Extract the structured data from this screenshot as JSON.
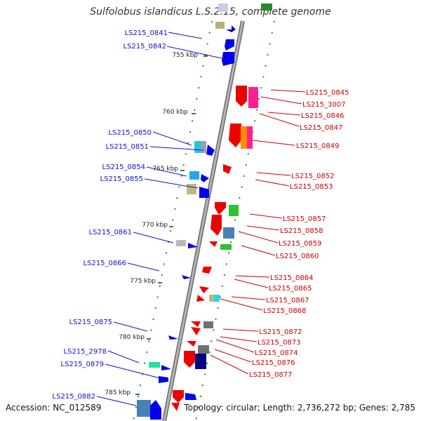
{
  "title": "Sulfolobus islandicus L.S.2.15, complete genome",
  "footer": {
    "accession": "Accession: NC_012589",
    "summary": "Topology: circular; Length: 2,736,272 bp; Genes: 2,785"
  },
  "ticks": [
    "755 kbp",
    "760 kbp",
    "765 kbp",
    "770 kbp",
    "775 kbp",
    "780 kbp",
    "785 kbp"
  ],
  "left_labels": [
    "LS215_0841",
    "LS215_0842",
    "LS215_0850",
    "LS215_0851",
    "LS215_0854",
    "LS215_0855",
    "LS215_0861",
    "LS215_0866",
    "LS215_0875",
    "LS215_2978",
    "LS215_0879",
    "LS215_0882"
  ],
  "right_labels": [
    "LS215_0845",
    "LS215_3007",
    "LS215_0846",
    "LS215_0847",
    "LS215_0849",
    "LS215_0852",
    "LS215_0853",
    "LS215_0857",
    "LS215_0858",
    "LS215_0859",
    "LS215_0860",
    "LS215_0864",
    "LS215_0865",
    "LS215_0867",
    "LS215_0868",
    "LS215_0872",
    "LS215_0873",
    "LS215_0874",
    "LS215_0876",
    "LS215_0877"
  ],
  "colors": {
    "backbone": "#9a9a9a",
    "reverse_strand": "#0000ee",
    "forward_strand": "#ee0000",
    "label_left": "#1010cc",
    "label_right": "#cc0000",
    "track_dots": "#2a8a2a",
    "tick_label": "#222222"
  }
}
